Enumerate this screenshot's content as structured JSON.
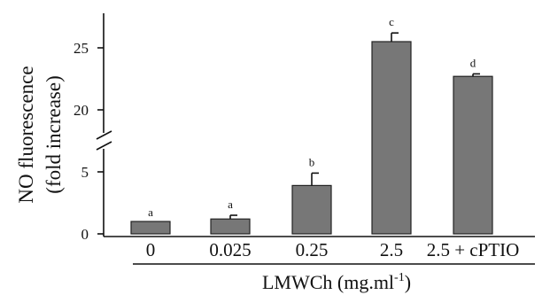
{
  "chart_data": {
    "type": "bar",
    "ylabel": [
      "NO fluorescence",
      "(fold increase)"
    ],
    "xlabel": {
      "main": "LMWCh (mg.ml",
      "sup": "-1",
      "close": ")"
    },
    "categories": [
      "0",
      "0.025",
      "0.25",
      "2.5",
      "2.5 + cPTIO"
    ],
    "values": [
      1.0,
      1.2,
      3.9,
      25.5,
      22.7
    ],
    "errors": [
      0,
      0.3,
      1.0,
      0.7,
      0.2
    ],
    "significance": [
      "a",
      "a",
      "b",
      "c",
      "d"
    ],
    "y_ticks": [
      "0",
      "5",
      "20",
      "25"
    ],
    "y_axis_break": {
      "lower_segment": [
        0,
        7
      ],
      "upper_segment": [
        18,
        27
      ]
    },
    "colors": {
      "bar": "#777777",
      "bar_edge": "#222222",
      "axis": "#111111"
    }
  }
}
